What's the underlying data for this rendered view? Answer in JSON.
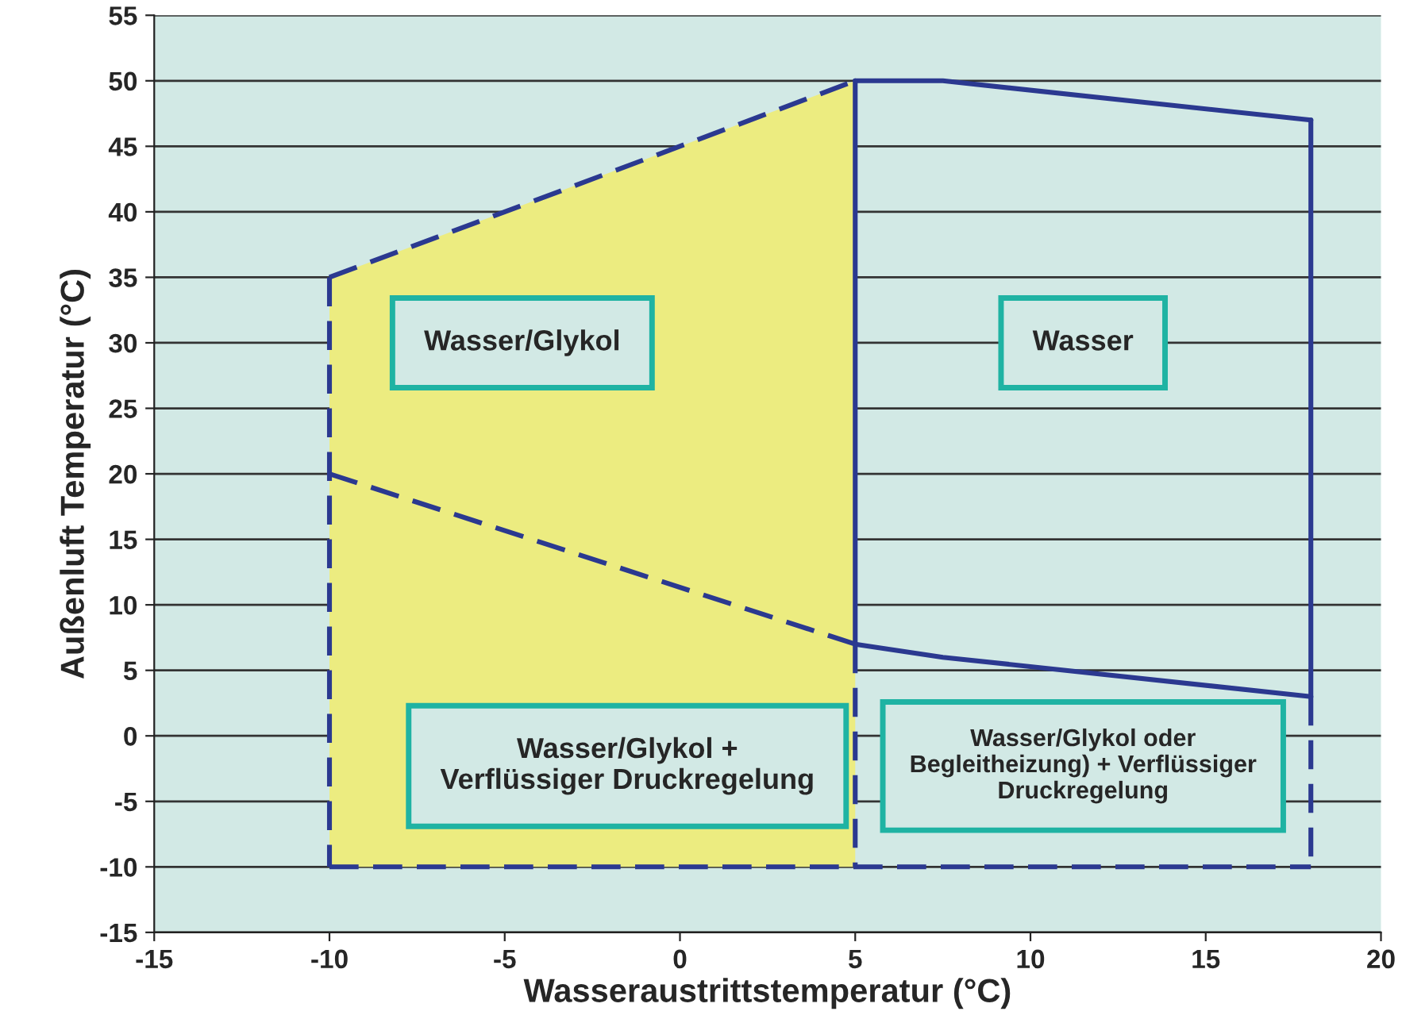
{
  "chart_data": {
    "type": "line",
    "xlabel": "Wasseraustrittstemperatur (°C)",
    "ylabel": "Außenluft Temperatur (°C)",
    "xlim": [
      -15,
      20
    ],
    "xticks": [
      -15,
      -10,
      -5,
      0,
      5,
      10,
      15,
      20
    ],
    "ylim": [
      -15,
      55
    ],
    "yticks": [
      -15,
      -10,
      -5,
      0,
      5,
      10,
      15,
      20,
      25,
      30,
      35,
      40,
      45,
      50,
      55
    ],
    "grid": "y",
    "series": [
      {
        "type": "area",
        "color": "#ecec80",
        "x": [
          -10,
          -10,
          5,
          5
        ],
        "values": [
          -10,
          35,
          50,
          -10
        ]
      },
      {
        "color": "#2b3990",
        "line_style": "dashed",
        "x": [
          -10,
          5
        ],
        "values": [
          35,
          50
        ]
      },
      {
        "color": "#2b3990",
        "line_style": "solid",
        "x": [
          5,
          7.5,
          18
        ],
        "values": [
          50,
          50,
          47
        ]
      },
      {
        "color": "#2b3990",
        "line_style": "solid",
        "x": [
          5,
          5
        ],
        "values": [
          50,
          7
        ]
      },
      {
        "color": "#2b3990",
        "line_style": "solid",
        "x": [
          18,
          18
        ],
        "values": [
          47,
          3
        ]
      },
      {
        "color": "#2b3990",
        "line_style": "dashed",
        "x": [
          -10,
          5
        ],
        "values": [
          20,
          7
        ]
      },
      {
        "color": "#2b3990",
        "line_style": "solid",
        "x": [
          5,
          7.5,
          18
        ],
        "values": [
          7,
          6,
          3
        ]
      },
      {
        "color": "#2b3990",
        "line_style": "dashed",
        "x": [
          -10,
          -10
        ],
        "values": [
          35,
          -10
        ]
      },
      {
        "color": "#2b3990",
        "line_style": "dashed",
        "x": [
          -10,
          18
        ],
        "values": [
          -10,
          -10
        ]
      },
      {
        "color": "#2b3990",
        "line_style": "dashed",
        "x": [
          5,
          5
        ],
        "values": [
          7,
          -10
        ]
      },
      {
        "color": "#2b3990",
        "line_style": "dashed",
        "x": [
          18,
          18
        ],
        "values": [
          3,
          -10
        ]
      }
    ],
    "annotations": [
      "Wasser/Glykol",
      "Wasser",
      "Wasser/Glykol +\nVerflüssiger Druckregelung",
      "Wasser/Glykol oder\nBegleitheizung) + Verflüssiger\nDruckregelung"
    ]
  }
}
